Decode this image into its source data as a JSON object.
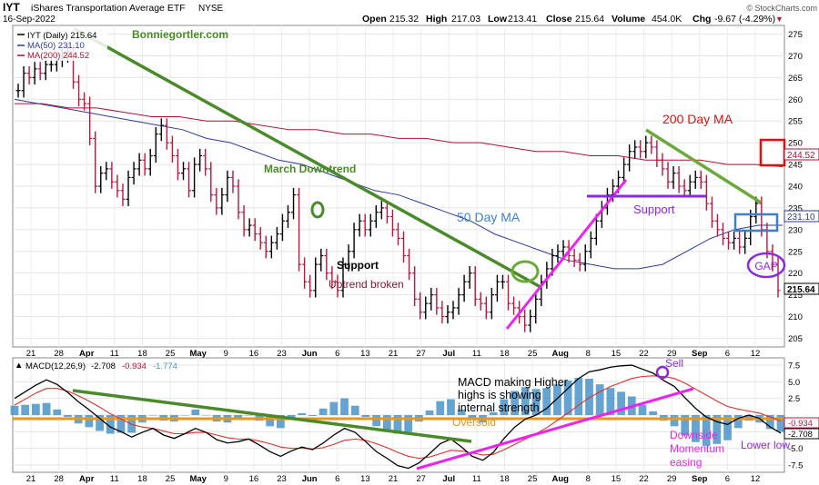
{
  "header": {
    "symbol": "IYT",
    "name": "iShares Transportation Average ETF",
    "exchange": "NYSE",
    "date": "16-Sep-2022",
    "open_label": "Open",
    "open": "215.32",
    "high_label": "High",
    "high": "217.03",
    "low_label": "Low",
    "low": "213.41",
    "close_label": "Close",
    "close": "215.64",
    "volume_label": "Volume",
    "volume": "454.0K",
    "chg_label": "Chg",
    "chg": "-9.67 (-4.29%)",
    "watermark": "© StockCharts.com"
  },
  "legend": {
    "iyt": "IYT (Daily) 215.64",
    "ma50": "MA(50) 231.10",
    "ma200": "MA(200) 244.52",
    "site": "Bonniegortler.com"
  },
  "macd_legend": {
    "label": "MACD(12,26,9)",
    "v1": "-2.708",
    "v2": "-0.934",
    "v3": "-1.774"
  },
  "annotations": {
    "downtrend": "March Downtrend",
    "ma50": "50 Day MA",
    "ma200": "200 Day MA",
    "support1": "Support",
    "uptrend_broken": "Uptrend broken",
    "support2": "Support",
    "gap": "GAP",
    "macd_line1": "MACD making Higher",
    "macd_line2": "highs is showing",
    "macd_line3": "internal strength",
    "sell": "Sell",
    "oversold": "Oversold",
    "downside1": "Downside",
    "downside2": "Momentum",
    "downside3": "easing",
    "lower_low": "Lower low"
  },
  "colors": {
    "up": "#000000",
    "down": "#c0143c",
    "ma50": "#2b3a9b",
    "ma200": "#b01030",
    "trend": "#4a8a2a",
    "magenta": "#ee22ee",
    "purple": "#8a2be2",
    "blue_box": "#3a7fd5",
    "red_box": "#e01010",
    "orange": "#e8961c",
    "hist": "#4a93c8"
  },
  "chart_data": [
    {
      "type": "line",
      "title": "IYT iShares Transportation Average ETF",
      "x_tick_labels": [
        "21",
        "28",
        "Apr",
        "11",
        "18",
        "25",
        "May",
        "9",
        "16",
        "23",
        "Jun",
        "6",
        "13",
        "21",
        "27",
        "Jul",
        "11",
        "18",
        "25",
        "Aug",
        "8",
        "15",
        "22",
        "29",
        "Sep",
        "6",
        "12"
      ],
      "ylim": [
        203,
        277
      ],
      "y_ticks": [
        205,
        210,
        215,
        220,
        225,
        230,
        235,
        240,
        245,
        250,
        255,
        260,
        265,
        270,
        275
      ],
      "last_close_label": "215.64",
      "ma50_label": "231.10",
      "ma200_label": "244.52",
      "series": [
        {
          "name": "IYT (Daily)",
          "values": [
            262,
            266,
            265,
            267,
            266,
            268,
            268,
            269,
            270,
            271,
            264,
            260,
            259,
            251,
            240,
            243,
            244,
            241,
            239,
            237,
            242,
            244,
            246,
            244,
            247,
            252,
            254,
            250,
            247,
            243,
            244,
            239,
            245,
            247,
            244,
            238,
            235,
            238,
            242,
            240,
            234,
            230,
            231,
            229,
            227,
            225,
            227,
            229,
            232,
            234,
            238,
            222,
            218,
            216,
            222,
            224,
            220,
            218,
            216,
            222,
            225,
            230,
            232,
            230,
            232,
            234,
            235,
            233,
            230,
            228,
            224,
            220,
            214,
            211,
            213,
            215,
            212,
            210,
            211,
            212,
            215,
            218,
            220,
            214,
            213,
            211,
            215,
            218,
            218,
            213,
            212,
            210,
            208,
            210,
            214,
            218,
            221,
            224,
            225,
            226,
            224,
            223,
            222,
            225,
            228,
            232,
            235,
            238,
            240,
            242,
            245,
            248,
            249,
            248,
            250,
            249,
            246,
            244,
            241,
            243,
            240,
            239,
            241,
            242,
            241,
            236,
            232,
            230,
            228,
            227,
            228,
            226,
            228,
            233,
            236,
            230,
            225,
            222,
            216
          ]
        },
        {
          "name": "MA(50)",
          "values": [
            260,
            259,
            258,
            257,
            256,
            255,
            254,
            253,
            251,
            250,
            248,
            246,
            245,
            243,
            241,
            239,
            238,
            236,
            234,
            232,
            229,
            227,
            225,
            223,
            222,
            221,
            221,
            222,
            225,
            228,
            230,
            231,
            231
          ]
        },
        {
          "name": "MA(200)",
          "values": [
            259,
            259,
            258,
            258,
            257,
            256,
            256,
            255,
            255,
            254,
            253,
            253,
            252,
            252,
            251,
            251,
            250,
            250,
            249,
            248,
            248,
            247,
            247,
            246,
            246,
            246,
            245,
            245,
            244.5
          ]
        }
      ]
    },
    {
      "type": "line",
      "title": "MACD(12,26,9)",
      "ylim": [
        -8.6,
        8.6
      ],
      "y_ticks": [
        -7.5,
        -5.0,
        -2.5,
        0,
        2.5,
        5.0,
        7.5
      ],
      "series": [
        {
          "name": "MACD",
          "values": [
            2.5,
            3.5,
            4.5,
            5.3,
            4.6,
            3.4,
            2.0,
            0.8,
            -0.5,
            -1.8,
            -2.5,
            -3.3,
            -2.6,
            -2.0,
            -3.0,
            -3.5,
            -2.8,
            -2.0,
            -2.6,
            -3.7,
            -4.2,
            -4.0,
            -3.6,
            -4.5,
            -5.5,
            -6.2,
            -5.4,
            -4.8,
            -5.2,
            -4.2,
            -3.0,
            -2.0,
            -2.6,
            -4.0,
            -5.5,
            -6.5,
            -7.6,
            -8.0,
            -7.2,
            -5.8,
            -4.3,
            -3.6,
            -4.8,
            -6.2,
            -6.8,
            -5.6,
            -3.5,
            -1.8,
            -0.6,
            0.0,
            1.0,
            2.5,
            4.0,
            5.5,
            6.5,
            6.8,
            7.2,
            7.4,
            7.5,
            6.9,
            6.3,
            5.2,
            4.3,
            2.6,
            1.0,
            -0.3,
            -1.0,
            -1.4,
            -0.5,
            0.0,
            -0.5,
            -1.8,
            -2.7
          ]
        },
        {
          "name": "Signal",
          "values": [
            1.5,
            2.4,
            3.3,
            4.0,
            4.0,
            3.6,
            2.9,
            2.1,
            1.2,
            0.2,
            -0.6,
            -1.4,
            -1.8,
            -2.0,
            -2.4,
            -2.8,
            -2.8,
            -2.6,
            -2.6,
            -3.0,
            -3.4,
            -3.6,
            -3.6,
            -3.9,
            -4.3,
            -4.8,
            -5.0,
            -5.0,
            -5.1,
            -4.9,
            -4.4,
            -3.8,
            -3.6,
            -3.8,
            -4.3,
            -4.9,
            -5.6,
            -6.2,
            -6.5,
            -6.3,
            -5.8,
            -5.3,
            -5.4,
            -5.7,
            -6.0,
            -5.9,
            -5.2,
            -4.4,
            -3.6,
            -2.8,
            -1.9,
            -0.8,
            0.3,
            1.5,
            2.6,
            3.5,
            4.3,
            4.9,
            5.5,
            5.8,
            5.9,
            5.8,
            5.5,
            4.8,
            3.9,
            3.0,
            2.1,
            1.3,
            0.9,
            0.6,
            0.3,
            -0.3,
            -0.9
          ]
        }
      ]
    }
  ]
}
